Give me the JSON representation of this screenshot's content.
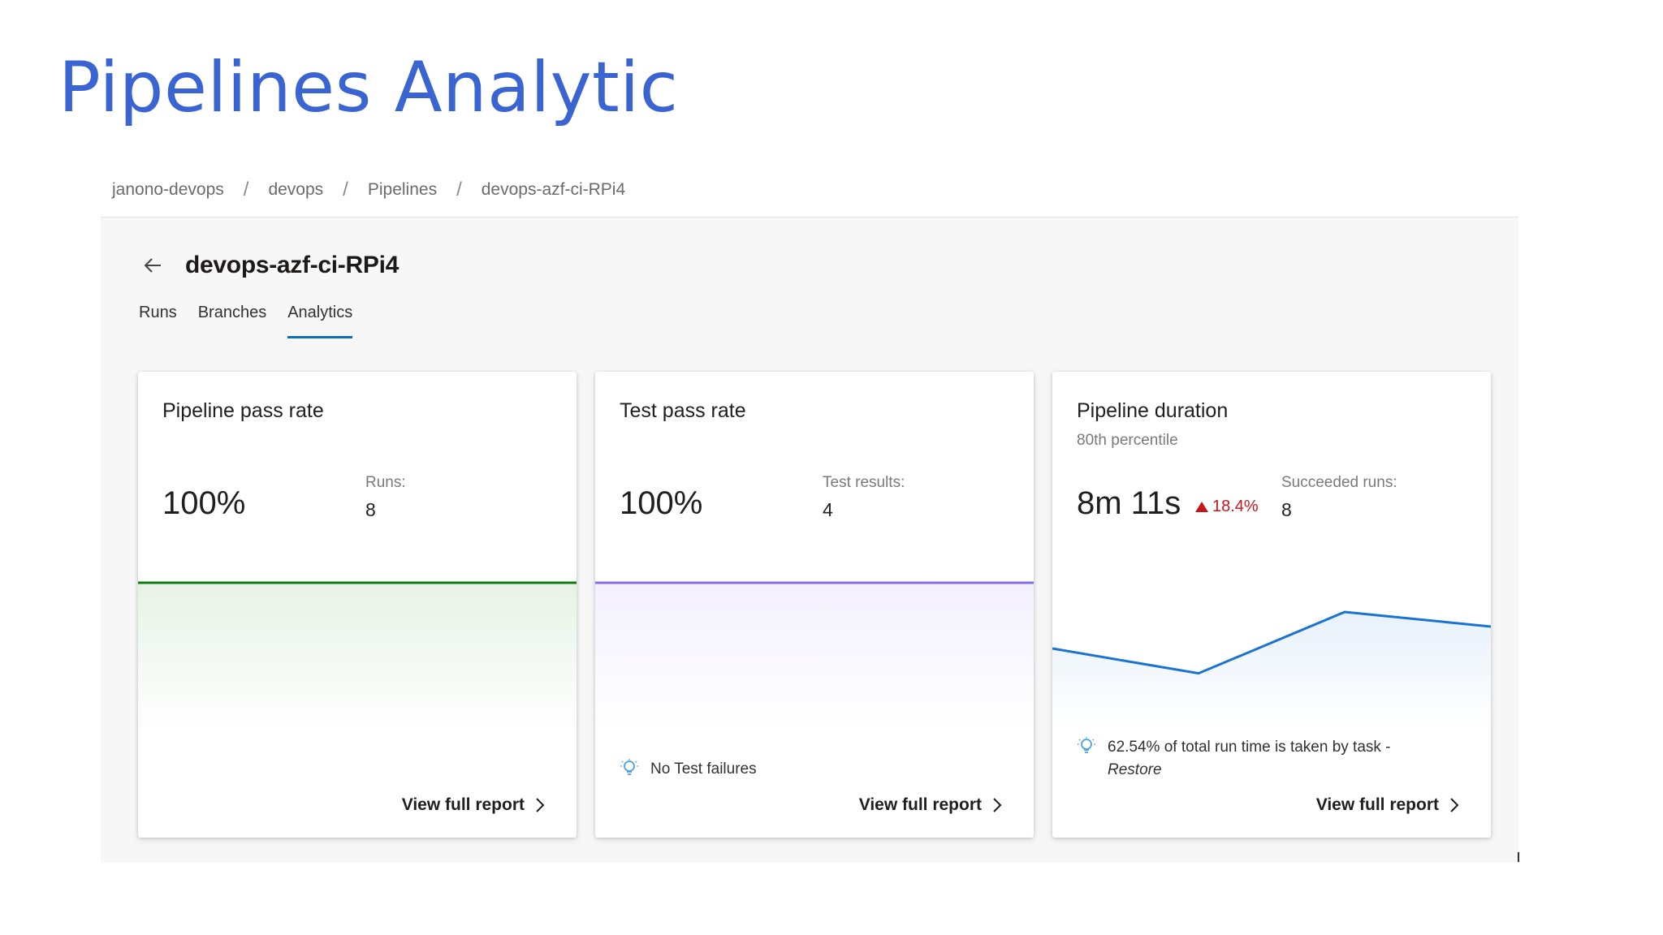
{
  "slide": {
    "title": "Pipelines Analytic"
  },
  "breadcrumb": [
    "janono-devops",
    "devops",
    "Pipelines",
    "devops-azf-ci-RPi4"
  ],
  "breadcrumb_separator": "/",
  "header": {
    "pipeline_name": "devops-azf-ci-RPi4",
    "back_icon": "arrow-left-icon"
  },
  "tabs": [
    {
      "label": "Runs",
      "active": false
    },
    {
      "label": "Branches",
      "active": false
    },
    {
      "label": "Analytics",
      "active": true
    }
  ],
  "colors": {
    "title": "#3b64d3",
    "pass_rate_line": "#107c10",
    "test_rate_line": "#8a6ee8",
    "duration_line": "#1a73d1",
    "delta_negative": "#c4171b",
    "active_tab": "#0f6cbd"
  },
  "cards": {
    "pipeline_pass_rate": {
      "title": "Pipeline pass rate",
      "value": "100%",
      "side_label": "Runs:",
      "side_value": "8",
      "link": "View full report"
    },
    "test_pass_rate": {
      "title": "Test pass rate",
      "value": "100%",
      "side_label": "Test results:",
      "side_value": "4",
      "tip": "No Test failures",
      "link": "View full report"
    },
    "pipeline_duration": {
      "title": "Pipeline duration",
      "subtitle": "80th percentile",
      "value": "8m 11s",
      "delta": "18.4%",
      "delta_direction": "up",
      "side_label": "Succeeded runs:",
      "side_value": "8",
      "tip_text": "62.54% of total run time is taken by task -",
      "tip_task": "Restore",
      "link": "View full report"
    }
  },
  "chart_data": [
    {
      "type": "line",
      "title": "",
      "series": [
        {
          "values": [
            100,
            100
          ]
        }
      ],
      "ylim": [
        0,
        100
      ]
    },
    {
      "type": "line",
      "title": "",
      "series": [
        {
          "values": [
            100,
            100
          ]
        }
      ],
      "ylim": [
        0,
        100
      ]
    },
    {
      "type": "area",
      "title": "",
      "series": [
        {
          "values": [
            0.55,
            0.38,
            0.8,
            0.7
          ]
        }
      ],
      "ylim": [
        0,
        1
      ]
    }
  ]
}
